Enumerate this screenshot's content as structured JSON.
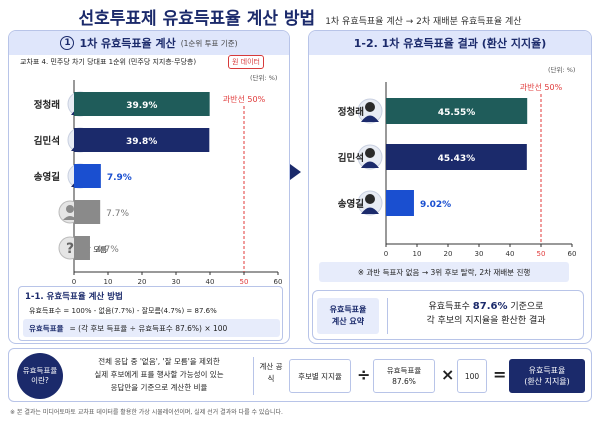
{
  "header": {
    "title": "선호투표제 유효득표율 계산 방법",
    "subtitle": "1차 유효득표율 계산 → 2차 재배분 유효득표율 계산"
  },
  "left_panel": {
    "number": "1",
    "title": "1차 유효득표율 계산",
    "subtitle": "(1순위 투표 기준)",
    "chart_note": "교차표 4. 민주당 차기 당대표 1순위 (민주당 지지층·무당층)",
    "raw_badge": "원 데이터",
    "unit": "(단위: %)"
  },
  "right_panel": {
    "title": "1-2. 1차 유효득표율 결과 (환산 지지율)",
    "unit": "(단위: %)"
  },
  "method": {
    "title": "1-1. 유효득표율 계산 방법",
    "line1": "유효득표수 = 100% - 없음(7.7%) - 잘모름(4.7%) = 87.6%",
    "label": "유효득표율",
    "formula": "= (각 후보 득표율 ÷ 유효득표수 87.6%) × 100"
  },
  "rule": {
    "text": "※ 과반 득표자 없음 → 3위 후보 탈락, 2차 재배분 진행"
  },
  "summary": {
    "label_line1": "유효득표율",
    "label_line2": "계산 요약",
    "text_pre": "유효득표수 ",
    "text_hl": "87.6%",
    "text_post": " 기준으로",
    "text_line2": "각 후보의 지지율을 환산한 결과"
  },
  "bottom": {
    "question": "유효득표율 이란?",
    "desc_line1": "전체 응답 중 '없음', '잘 모름'을 제외한",
    "desc_line2": "실제 후보에게 표를 행사할 가능성이 있는",
    "desc_line3": "응답만을 기준으로 계산한 비율",
    "calc_label": "계산 공식",
    "f1": "후보별 지지율",
    "op1": "÷",
    "f2_line1": "유효득표율",
    "f2_line2": "87.6%",
    "op2": "×",
    "f3": "100",
    "op3": "=",
    "f4_line1": "유효득표율",
    "f4_line2": "(환산 지지율)"
  },
  "footnote": "※ 본 결과는 미디어토마토 교차표 데이터를 활용한 가상 시뮬레이션이며, 실제 선거 결과와 다를 수 있습니다.",
  "colors": {
    "navy": "#1b2a6b",
    "teal": "#1f5c5a",
    "blue": "#1a4fd0",
    "gray": "#8a8a8a",
    "threshold": "#e03a3a"
  },
  "chart_data": [
    {
      "type": "bar",
      "orientation": "horizontal",
      "categories": [
        "정청래",
        "김민석",
        "송영길",
        "없음",
        "잘 모름"
      ],
      "values": [
        39.9,
        39.8,
        7.9,
        7.7,
        4.7
      ],
      "value_labels": [
        "39.9%",
        "39.8%",
        "7.9%",
        "7.7%",
        "4.7%"
      ],
      "xlim": [
        0,
        60
      ],
      "xticks": [
        0,
        10,
        20,
        30,
        40,
        50,
        60
      ],
      "threshold": {
        "value": 50,
        "label": "과반선 50%"
      },
      "bar_colors": [
        "#1f5c5a",
        "#1b2a6b",
        "#1a4fd0",
        "#8a8a8a",
        "#8a8a8a"
      ]
    },
    {
      "type": "bar",
      "orientation": "horizontal",
      "categories": [
        "정청래",
        "김민석",
        "송영길"
      ],
      "values": [
        45.55,
        45.43,
        9.02
      ],
      "value_labels": [
        "45.55%",
        "45.43%",
        "9.02%"
      ],
      "xlim": [
        0,
        60
      ],
      "xticks": [
        0,
        10,
        20,
        30,
        40,
        50,
        60
      ],
      "threshold": {
        "value": 50,
        "label": "과반선 50%"
      },
      "bar_colors": [
        "#1f5c5a",
        "#1b2a6b",
        "#1a4fd0"
      ]
    }
  ]
}
